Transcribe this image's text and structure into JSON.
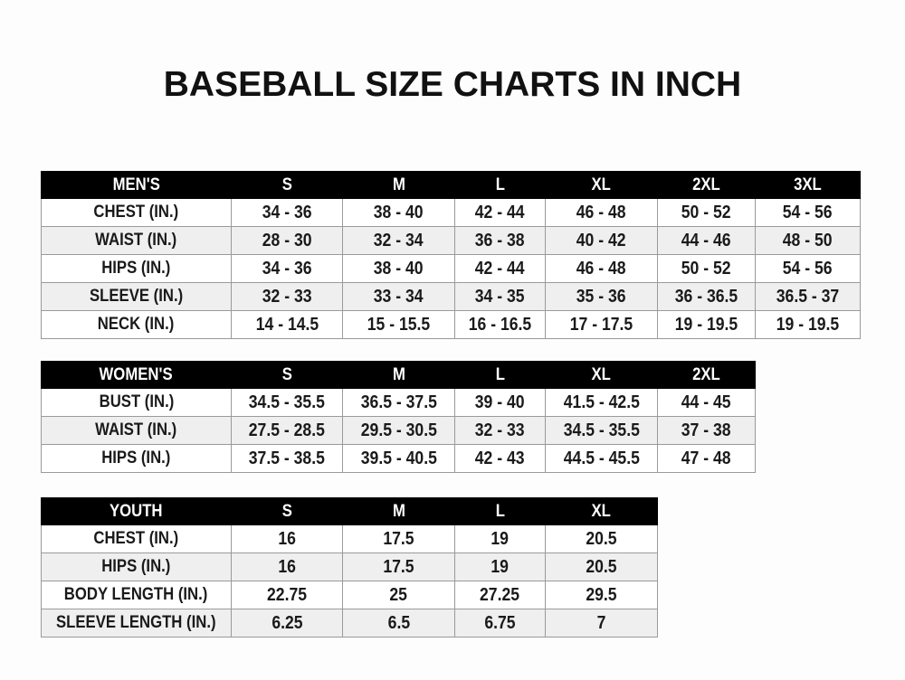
{
  "title": "BASEBALL SIZE CHARTS IN INCH",
  "tables": [
    {
      "name": "mens",
      "header": [
        "MEN'S",
        "S",
        "M",
        "L",
        "XL",
        "2XL",
        "3XL"
      ],
      "rows": [
        [
          "CHEST (IN.)",
          "34 - 36",
          "38 - 40",
          "42 - 44",
          "46 - 48",
          "50 - 52",
          "54 - 56"
        ],
        [
          "WAIST (IN.)",
          "28 - 30",
          "32 - 34",
          "36 - 38",
          "40 - 42",
          "44 - 46",
          "48 - 50"
        ],
        [
          "HIPS (IN.)",
          "34 - 36",
          "38 - 40",
          "42 - 44",
          "46 - 48",
          "50 - 52",
          "54 - 56"
        ],
        [
          "SLEEVE (IN.)",
          "32 - 33",
          "33 - 34",
          "34 - 35",
          "35 - 36",
          "36 - 36.5",
          "36.5 - 37"
        ],
        [
          "NECK (IN.)",
          "14 - 14.5",
          "15 - 15.5",
          "16 - 16.5",
          "17 - 17.5",
          "19 - 19.5",
          "19 - 19.5"
        ]
      ]
    },
    {
      "name": "womens",
      "header": [
        "WOMEN'S",
        "S",
        "M",
        "L",
        "XL",
        "2XL"
      ],
      "rows": [
        [
          "BUST (IN.)",
          "34.5 - 35.5",
          "36.5 - 37.5",
          "39 - 40",
          "41.5 - 42.5",
          "44 - 45"
        ],
        [
          "WAIST (IN.)",
          "27.5 - 28.5",
          "29.5 - 30.5",
          "32 - 33",
          "34.5 - 35.5",
          "37 - 38"
        ],
        [
          "HIPS (IN.)",
          "37.5 - 38.5",
          "39.5 - 40.5",
          "42 - 43",
          "44.5 - 45.5",
          "47 - 48"
        ]
      ]
    },
    {
      "name": "youth",
      "header": [
        "YOUTH",
        "S",
        "M",
        "L",
        "XL"
      ],
      "rows": [
        [
          "CHEST (IN.)",
          "16",
          "17.5",
          "19",
          "20.5"
        ],
        [
          "HIPS (IN.)",
          "16",
          "17.5",
          "19",
          "20.5"
        ],
        [
          "BODY LENGTH (IN.)",
          "22.75",
          "25",
          "27.25",
          "29.5"
        ],
        [
          "SLEEVE LENGTH (IN.)",
          "6.25",
          "6.5",
          "6.75",
          "7"
        ]
      ]
    }
  ]
}
